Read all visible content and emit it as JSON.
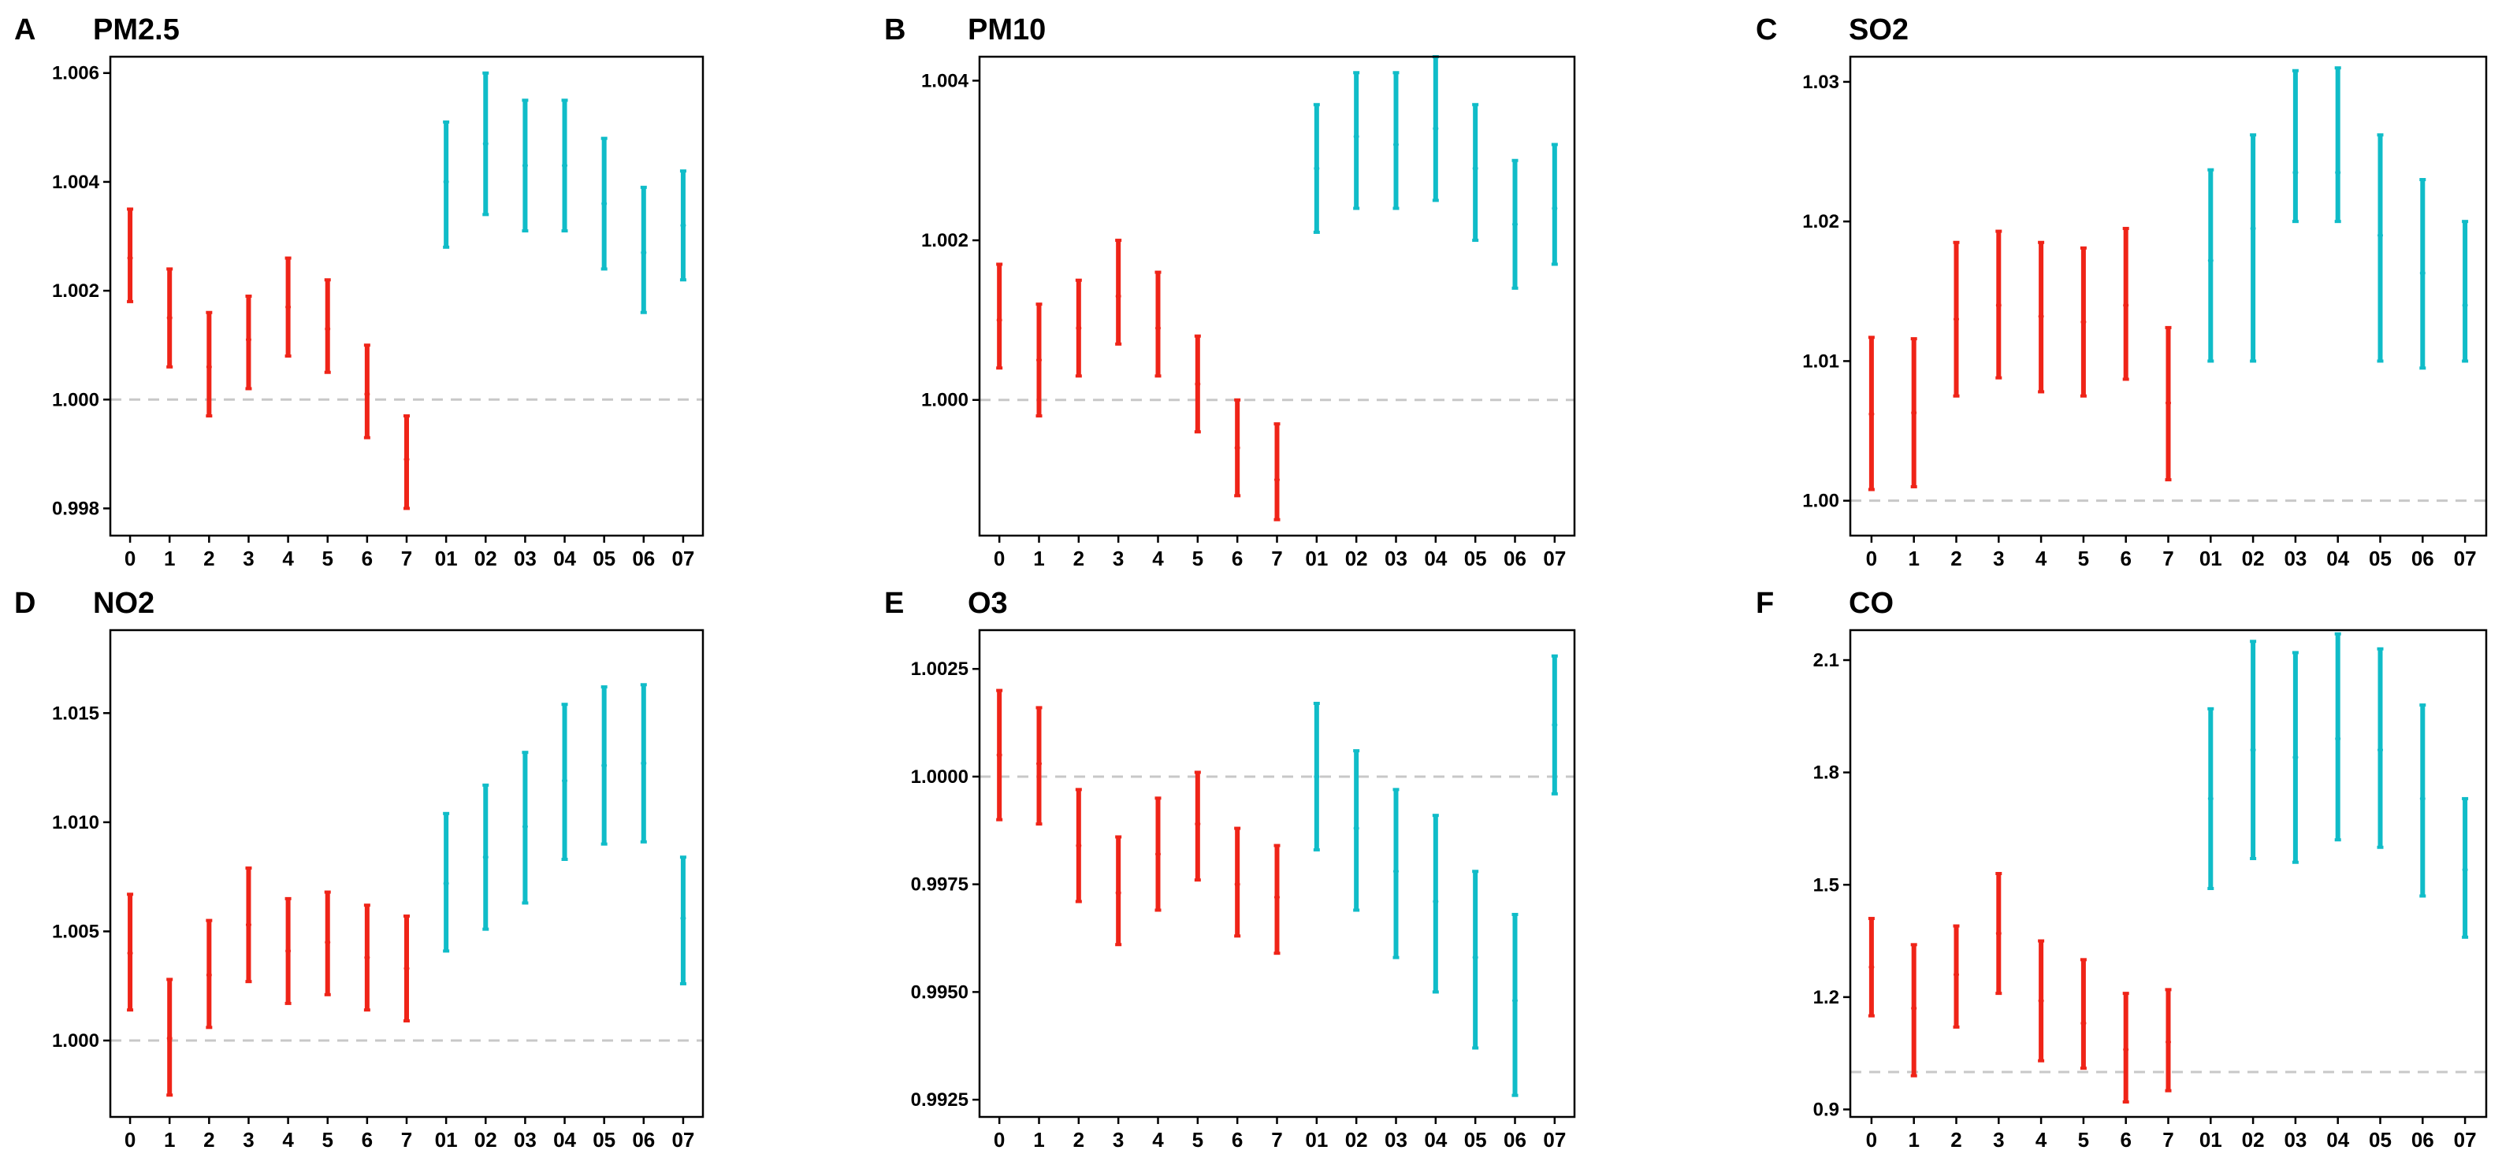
{
  "colors": {
    "lag": "#ef2418",
    "cumulative": "#10bcc8",
    "reference": "#c8c8c8"
  },
  "chart_data": [
    {
      "type": "errorbar",
      "letter": "A",
      "title": "PM2.5",
      "categories": [
        "0",
        "1",
        "2",
        "3",
        "4",
        "5",
        "6",
        "7",
        "01",
        "02",
        "03",
        "04",
        "05",
        "06",
        "07"
      ],
      "reference": 1.0,
      "ylim": [
        0.9975,
        1.0063
      ],
      "yticks": [
        0.998,
        1.0,
        1.002,
        1.004,
        1.006
      ],
      "ytick_labels": [
        "0.998",
        "1.000",
        "1.002",
        "1.004",
        "1.006"
      ],
      "estimate": [
        1.0026,
        1.0015,
        1.0006,
        1.0011,
        1.0017,
        1.0013,
        1.0001,
        0.9989,
        1.004,
        1.0047,
        1.0043,
        1.0043,
        1.0036,
        1.0027,
        1.0032
      ],
      "lower": [
        1.0018,
        1.0006,
        0.9997,
        1.0002,
        1.0008,
        1.0005,
        0.9993,
        0.998,
        1.0028,
        1.0034,
        1.0031,
        1.0031,
        1.0024,
        1.0016,
        1.0022
      ],
      "upper": [
        1.0035,
        1.0024,
        1.0016,
        1.0019,
        1.0026,
        1.0022,
        1.001,
        0.9997,
        1.0051,
        1.006,
        1.0055,
        1.0055,
        1.0048,
        1.0039,
        1.0042
      ]
    },
    {
      "type": "errorbar",
      "letter": "B",
      "title": "PM10",
      "categories": [
        "0",
        "1",
        "2",
        "3",
        "4",
        "5",
        "6",
        "7",
        "01",
        "02",
        "03",
        "04",
        "05",
        "06",
        "07"
      ],
      "reference": 1.0,
      "ylim": [
        0.9983,
        1.0043
      ],
      "yticks": [
        1.0,
        1.002,
        1.004
      ],
      "ytick_labels": [
        "1.000",
        "1.002",
        "1.004"
      ],
      "estimate": [
        1.001,
        1.0005,
        1.0009,
        1.0013,
        1.0009,
        1.0002,
        0.9994,
        0.999,
        1.0029,
        1.0033,
        1.0032,
        1.0034,
        1.0029,
        1.0022,
        1.0024
      ],
      "lower": [
        1.0004,
        0.9998,
        1.0003,
        1.0007,
        1.0003,
        0.9996,
        0.9988,
        0.9985,
        1.0021,
        1.0024,
        1.0024,
        1.0025,
        1.002,
        1.0014,
        1.0017
      ],
      "upper": [
        1.0017,
        1.0012,
        1.0015,
        1.002,
        1.0016,
        1.0008,
        1.0,
        0.9997,
        1.0037,
        1.0041,
        1.0041,
        1.0043,
        1.0037,
        1.003,
        1.0032
      ]
    },
    {
      "type": "errorbar",
      "letter": "C",
      "title": "SO2",
      "categories": [
        "0",
        "1",
        "2",
        "3",
        "4",
        "5",
        "6",
        "7",
        "01",
        "02",
        "03",
        "04",
        "05",
        "06",
        "07"
      ],
      "reference": 1.0,
      "ylim": [
        0.9975,
        1.0318
      ],
      "yticks": [
        1.0,
        1.01,
        1.02,
        1.03
      ],
      "ytick_labels": [
        "1.00",
        "1.01",
        "1.02",
        "1.03"
      ],
      "estimate": [
        1.0062,
        1.0063,
        1.013,
        1.014,
        1.0132,
        1.0128,
        1.014,
        1.007,
        1.0172,
        1.0195,
        1.0235,
        1.0235,
        1.019,
        1.0163,
        1.014
      ],
      "lower": [
        1.0008,
        1.001,
        1.0075,
        1.0088,
        1.0078,
        1.0075,
        1.0087,
        1.0015,
        1.01,
        1.01,
        1.02,
        1.02,
        1.01,
        1.0095,
        1.01
      ],
      "upper": [
        1.0117,
        1.0116,
        1.0185,
        1.0193,
        1.0185,
        1.0181,
        1.0195,
        1.0124,
        1.0237,
        1.0262,
        1.0308,
        1.031,
        1.0262,
        1.023,
        1.02
      ]
    },
    {
      "type": "errorbar",
      "letter": "D",
      "title": "NO2",
      "categories": [
        "0",
        "1",
        "2",
        "3",
        "4",
        "5",
        "6",
        "7",
        "01",
        "02",
        "03",
        "04",
        "05",
        "06",
        "07"
      ],
      "reference": 1.0,
      "ylim": [
        0.9965,
        1.0188
      ],
      "yticks": [
        1.0,
        1.005,
        1.01,
        1.015
      ],
      "ytick_labels": [
        "1.000",
        "1.005",
        "1.010",
        "1.015"
      ],
      "estimate": [
        1.004,
        1.0001,
        1.003,
        1.0053,
        1.0041,
        1.0045,
        1.0038,
        1.0033,
        1.0072,
        1.0084,
        1.0098,
        1.0119,
        1.0126,
        1.0127,
        1.0056
      ],
      "lower": [
        1.0014,
        0.9975,
        1.0006,
        1.0027,
        1.0017,
        1.0021,
        1.0014,
        1.0009,
        1.0041,
        1.0051,
        1.0063,
        1.0083,
        1.009,
        1.0091,
        1.0026
      ],
      "upper": [
        1.0067,
        1.0028,
        1.0055,
        1.0079,
        1.0065,
        1.0068,
        1.0062,
        1.0057,
        1.0104,
        1.0117,
        1.0132,
        1.0154,
        1.0162,
        1.0163,
        1.0084
      ]
    },
    {
      "type": "errorbar",
      "letter": "E",
      "title": "O3",
      "categories": [
        "0",
        "1",
        "2",
        "3",
        "4",
        "5",
        "6",
        "7",
        "01",
        "02",
        "03",
        "04",
        "05",
        "06",
        "07"
      ],
      "reference": 1.0,
      "ylim": [
        0.9921,
        1.0034
      ],
      "yticks": [
        0.9925,
        0.995,
        0.9975,
        1.0,
        1.0025
      ],
      "ytick_labels": [
        "0.9925",
        "0.9950",
        "0.9975",
        "1.0000",
        "1.0025"
      ],
      "estimate": [
        1.0005,
        1.0003,
        0.9984,
        0.9973,
        0.9982,
        0.9989,
        0.9975,
        0.9972,
        1.0,
        0.9988,
        0.9978,
        0.9971,
        0.9958,
        0.9948,
        1.0012
      ],
      "lower": [
        0.999,
        0.9989,
        0.9971,
        0.9961,
        0.9969,
        0.9976,
        0.9963,
        0.9959,
        0.9983,
        0.9969,
        0.9958,
        0.995,
        0.9937,
        0.9926,
        0.9996
      ],
      "upper": [
        1.002,
        1.0016,
        0.9997,
        0.9986,
        0.9995,
        1.0001,
        0.9988,
        0.9984,
        1.0017,
        1.0006,
        0.9997,
        0.9991,
        0.9978,
        0.9968,
        1.0028
      ]
    },
    {
      "type": "errorbar",
      "letter": "F",
      "title": "CO",
      "categories": [
        "0",
        "1",
        "2",
        "3",
        "4",
        "5",
        "6",
        "7",
        "01",
        "02",
        "03",
        "04",
        "05",
        "06",
        "07"
      ],
      "reference": 1.0,
      "ylim": [
        0.88,
        2.18
      ],
      "yticks": [
        0.9,
        1.2,
        1.5,
        1.8,
        2.1
      ],
      "ytick_labels": [
        "0.9",
        "1.2",
        "1.5",
        "1.8",
        "2.1"
      ],
      "estimate": [
        1.28,
        1.17,
        1.26,
        1.37,
        1.19,
        1.13,
        1.06,
        1.08,
        1.73,
        1.86,
        1.84,
        1.89,
        1.86,
        1.73,
        1.54
      ],
      "lower": [
        1.15,
        0.99,
        1.12,
        1.21,
        1.03,
        1.01,
        0.92,
        0.95,
        1.49,
        1.57,
        1.56,
        1.62,
        1.6,
        1.47,
        1.36
      ],
      "upper": [
        1.41,
        1.34,
        1.39,
        1.53,
        1.35,
        1.3,
        1.21,
        1.22,
        1.97,
        2.15,
        2.12,
        2.17,
        2.13,
        1.98,
        1.73
      ]
    }
  ]
}
